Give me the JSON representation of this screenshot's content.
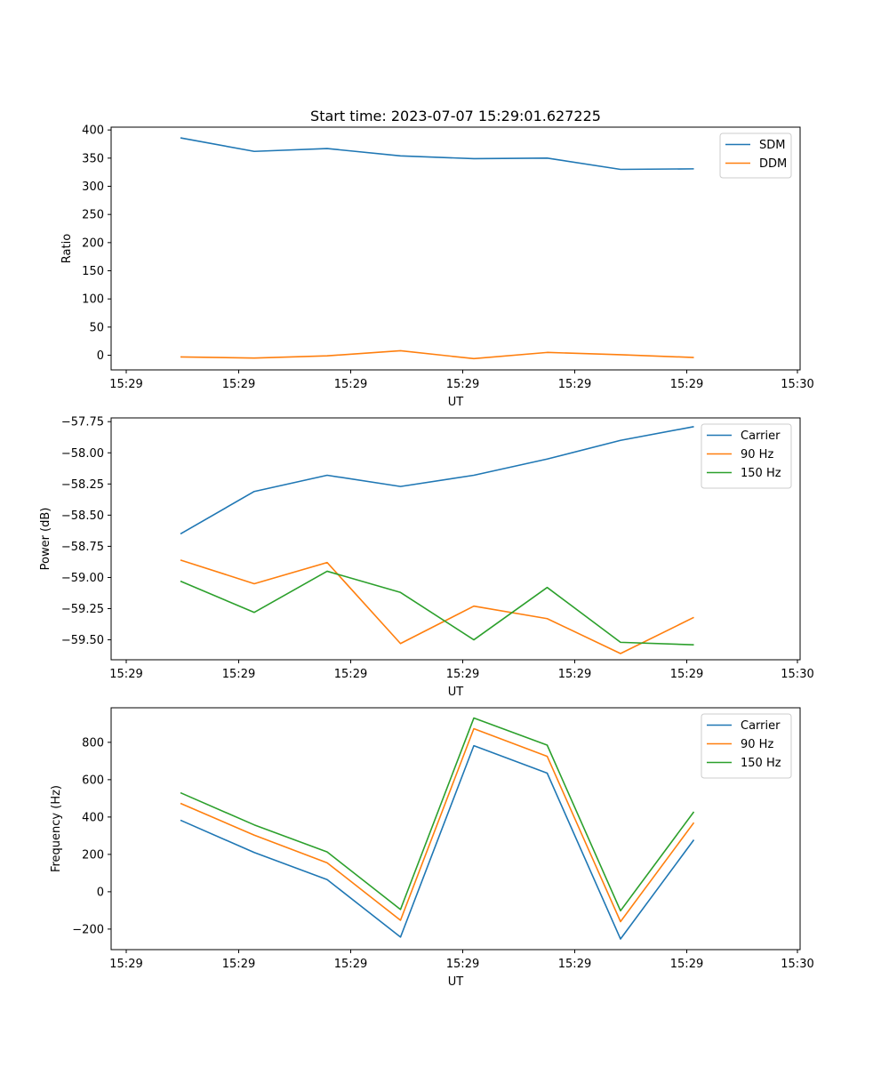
{
  "chart_data": [
    {
      "type": "line",
      "id": "ratio",
      "title": "Start time: 2023-07-07 15:29:01.627225",
      "xlabel": "UT",
      "ylabel": "Ratio",
      "x_tick_labels": [
        "15:29",
        "15:29",
        "15:29",
        "15:29",
        "15:29",
        "15:29",
        "15:30"
      ],
      "x_index": [
        0,
        1,
        2,
        3,
        4,
        5,
        6,
        7
      ],
      "y_ticks": [
        0,
        50,
        100,
        150,
        200,
        250,
        300,
        350,
        400
      ],
      "ylim": [
        -26,
        405
      ],
      "legend_position": "top-right",
      "series": [
        {
          "name": "SDM",
          "color": "#1f77b4",
          "values": [
            386,
            362,
            367,
            354,
            349,
            350,
            330,
            331
          ]
        },
        {
          "name": "DDM",
          "color": "#ff7f0e",
          "values": [
            -3,
            -5,
            -1,
            8,
            -6,
            5,
            1,
            -4
          ]
        }
      ]
    },
    {
      "type": "line",
      "id": "power",
      "title": "",
      "xlabel": "UT",
      "ylabel": "Power (dB)",
      "x_tick_labels": [
        "15:29",
        "15:29",
        "15:29",
        "15:29",
        "15:29",
        "15:29",
        "15:30"
      ],
      "x_index": [
        0,
        1,
        2,
        3,
        4,
        5,
        6,
        7
      ],
      "y_ticks": [
        -59.5,
        -59.25,
        -59.0,
        -58.75,
        -58.5,
        -58.25,
        -58.0,
        -57.75
      ],
      "y_tick_labels": [
        "−59.50",
        "−59.25",
        "−59.00",
        "−58.75",
        "−58.50",
        "−58.25",
        "−58.00",
        "−57.75"
      ],
      "ylim": [
        -59.66,
        -57.72
      ],
      "legend_position": "top-right",
      "series": [
        {
          "name": "Carrier",
          "color": "#1f77b4",
          "values": [
            -58.65,
            -58.31,
            -58.18,
            -58.27,
            -58.18,
            -58.05,
            -57.9,
            -57.79
          ]
        },
        {
          "name": "90 Hz",
          "color": "#ff7f0e",
          "values": [
            -58.86,
            -59.05,
            -58.88,
            -59.53,
            -59.23,
            -59.33,
            -59.61,
            -59.32
          ]
        },
        {
          "name": "150 Hz",
          "color": "#2ca02c",
          "values": [
            -59.03,
            -59.28,
            -58.95,
            -59.12,
            -59.5,
            -59.08,
            -59.52,
            -59.54
          ]
        }
      ]
    },
    {
      "type": "line",
      "id": "frequency",
      "title": "",
      "xlabel": "UT",
      "ylabel": "Frequency (Hz)",
      "x_tick_labels": [
        "15:29",
        "15:29",
        "15:29",
        "15:29",
        "15:29",
        "15:29",
        "15:30"
      ],
      "x_index": [
        0,
        1,
        2,
        3,
        4,
        5,
        6,
        7
      ],
      "y_ticks": [
        -200,
        0,
        200,
        400,
        600,
        800
      ],
      "y_tick_labels": [
        "−200",
        "0",
        "200",
        "400",
        "600",
        "800"
      ],
      "ylim": [
        -310,
        985
      ],
      "legend_position": "top-right",
      "series": [
        {
          "name": "Carrier",
          "color": "#1f77b4",
          "values": [
            383,
            210,
            65,
            -243,
            782,
            635,
            -253,
            278
          ]
        },
        {
          "name": "90 Hz",
          "color": "#ff7f0e",
          "values": [
            473,
            303,
            155,
            -153,
            873,
            725,
            -160,
            370
          ]
        },
        {
          "name": "150 Hz",
          "color": "#2ca02c",
          "values": [
            530,
            358,
            213,
            -95,
            930,
            785,
            -102,
            428
          ]
        }
      ]
    }
  ]
}
